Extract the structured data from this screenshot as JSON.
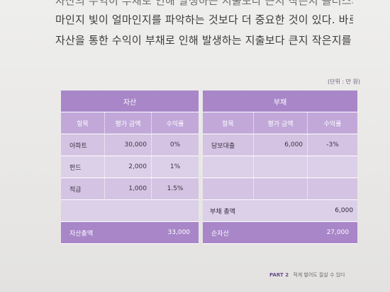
{
  "paragraph": {
    "line0": "자산의 수익이 부채로 인해 발생하는 지출보다 큰지 작은지 플러스와",
    "line1": "마인지 빛이 얼마인지를 파악하는 것보다 더 중요한 것이 있다. 바로",
    "line2": "자산을 통한 수익이 부채로 인해 발생하는 지출보다 큰지 작은지를"
  },
  "unit_note": "(단위 : 만 원)",
  "table": {
    "assets_header": "자산",
    "liabilities_header": "부채",
    "columns": [
      "항목",
      "평가 금액",
      "수익률"
    ],
    "assets_rows": [
      {
        "item": "아파트",
        "value": "30,000",
        "rate": "0%"
      },
      {
        "item": "펀드",
        "value": "2,000",
        "rate": "1%"
      },
      {
        "item": "적금",
        "value": "1,000",
        "rate": "1.5%"
      }
    ],
    "liabilities_rows": [
      {
        "item": "담보대출",
        "value": "6,000",
        "rate": "-3%"
      }
    ],
    "liabilities_total_label": "부채 총액",
    "liabilities_total_value": "6,000",
    "assets_total_label": "자산총액",
    "assets_total_value": "33,000",
    "net_assets_label": "순자산",
    "net_assets_value": "27,000"
  },
  "footer": {
    "part": "PART 2",
    "title": "적게 벌어도 잘살 수 있다"
  },
  "colors": {
    "header": "#a886c8",
    "subheader": "#c1a8d9",
    "row": "#d4c3e2"
  }
}
